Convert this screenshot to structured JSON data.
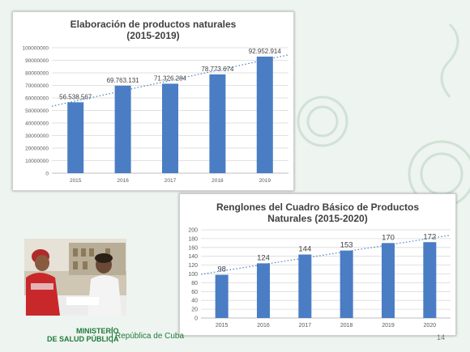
{
  "chart_data": [
    {
      "type": "bar",
      "title_lines": [
        "Elaboración de productos naturales",
        "(2015-2019)"
      ],
      "categories": [
        "2015",
        "2016",
        "2017",
        "2018",
        "2019"
      ],
      "values": [
        56538567,
        69763131,
        71326284,
        78773674,
        92952914
      ],
      "value_labels": [
        "56.538.567",
        "69.763.131",
        "71.326.284",
        "78.773.674",
        "92.952.914"
      ],
      "yticks": [
        "0",
        "10000000",
        "20000000",
        "30000000",
        "40000000",
        "50000000",
        "60000000",
        "70000000",
        "80000000",
        "90000000",
        "100000000"
      ],
      "ylim": [
        0,
        100000000
      ],
      "trendline": "linear-dotted",
      "grid": true,
      "bar_color": "#4a7dc4"
    },
    {
      "type": "bar",
      "title_lines": [
        "Renglones del Cuadro Básico de Productos",
        "Naturales (2015-2020)"
      ],
      "categories": [
        "2015",
        "2016",
        "2017",
        "2018",
        "2019",
        "2020"
      ],
      "values": [
        98,
        124,
        144,
        153,
        170,
        172
      ],
      "value_labels": [
        "98",
        "124",
        "144",
        "153",
        "170",
        "172"
      ],
      "yticks": [
        "0",
        "20",
        "40",
        "60",
        "80",
        "100",
        "120",
        "140",
        "160",
        "180",
        "200"
      ],
      "ylim": [
        0,
        200
      ],
      "trendline": "linear-dotted",
      "grid": true,
      "bar_color": "#4a7dc4"
    }
  ],
  "footer": {
    "ministry_line1": "MINISTERIO",
    "ministry_line2": "DE SALUD PÚBLICA",
    "country": "República de Cuba",
    "page_number": "14"
  },
  "photo": {
    "icon": "pharmacy-photo"
  }
}
